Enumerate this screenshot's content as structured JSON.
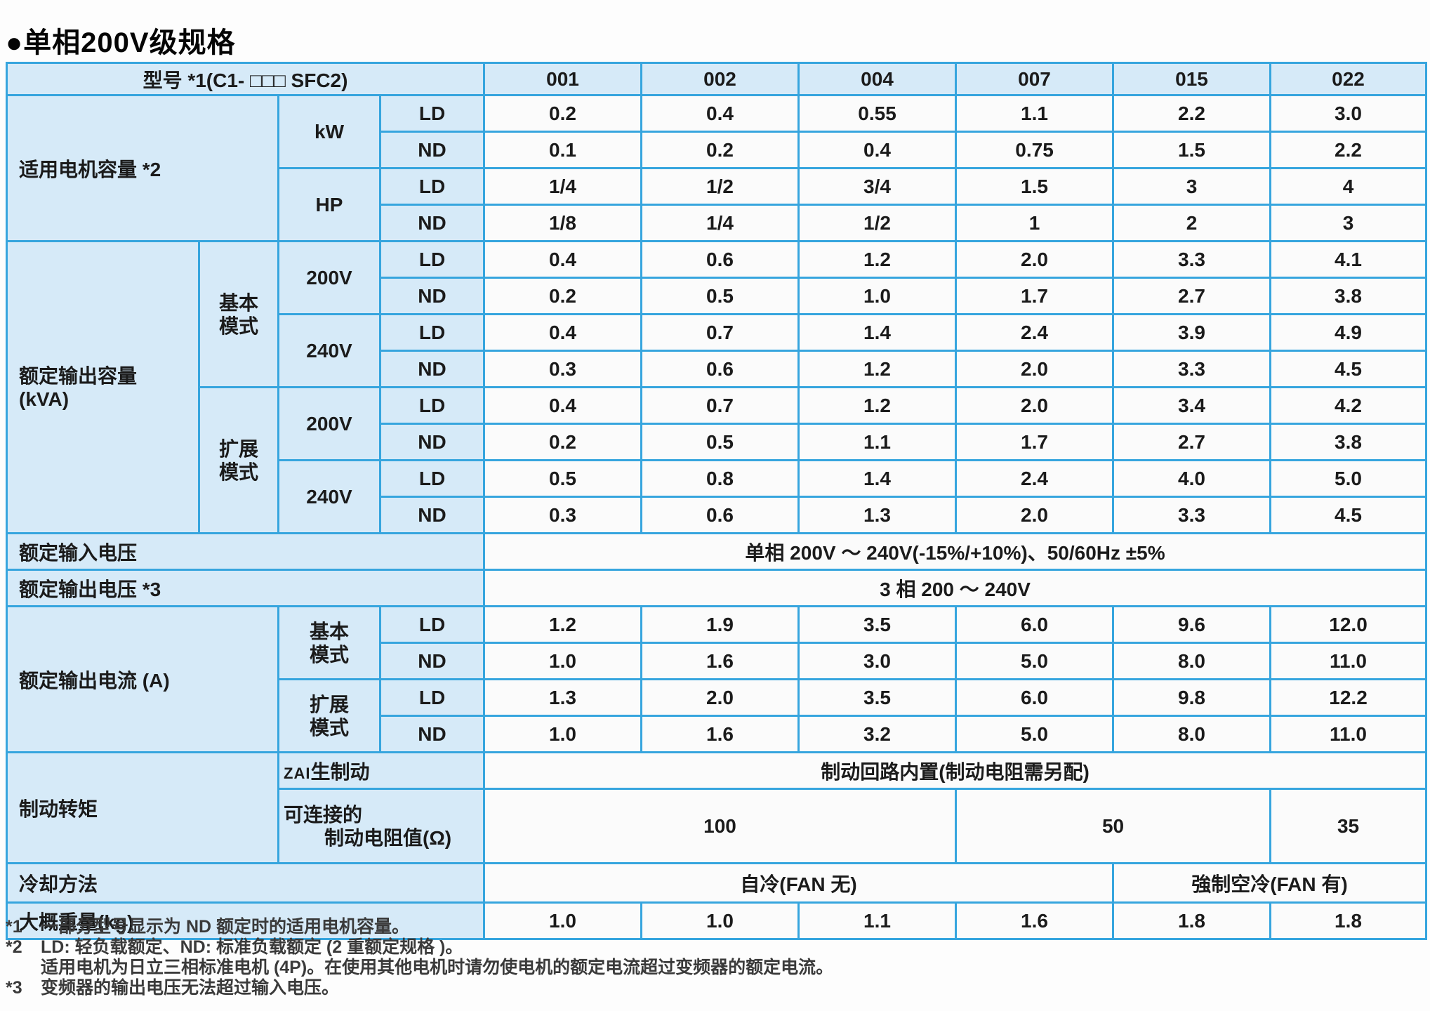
{
  "title": "●单相200V级规格",
  "colors": {
    "table_border": "#36a5de",
    "label_fill": "#d6eaf8",
    "value_fill": "#fbfbfb",
    "text": "#1b1b1b"
  },
  "specs": {
    "model_row": {
      "label": "型号 *1(C1- □□□ SFC2)",
      "models": [
        "001",
        "002",
        "004",
        "007",
        "015",
        "022"
      ]
    },
    "motor": {
      "label": "适用电机容量 *2",
      "units": [
        {
          "unit": "kW",
          "rows": [
            {
              "load": "LD",
              "values": [
                "0.2",
                "0.4",
                "0.55",
                "1.1",
                "2.2",
                "3.0"
              ]
            },
            {
              "load": "ND",
              "values": [
                "0.1",
                "0.2",
                "0.4",
                "0.75",
                "1.5",
                "2.2"
              ]
            }
          ]
        },
        {
          "unit": "HP",
          "rows": [
            {
              "load": "LD",
              "values": [
                "1/4",
                "1/2",
                "3/4",
                "1.5",
                "3",
                "4"
              ]
            },
            {
              "load": "ND",
              "values": [
                "1/8",
                "1/4",
                "1/2",
                "1",
                "2",
                "3"
              ]
            }
          ]
        }
      ]
    },
    "capacity": {
      "label_lines": [
        "额定输出容量",
        "(kVA)"
      ],
      "modes": [
        {
          "mode_lines": [
            "基本",
            "模式"
          ],
          "voltages": [
            {
              "voltage": "200V",
              "rows": [
                {
                  "load": "LD",
                  "values": [
                    "0.4",
                    "0.6",
                    "1.2",
                    "2.0",
                    "3.3",
                    "4.1"
                  ]
                },
                {
                  "load": "ND",
                  "values": [
                    "0.2",
                    "0.5",
                    "1.0",
                    "1.7",
                    "2.7",
                    "3.8"
                  ]
                }
              ]
            },
            {
              "voltage": "240V",
              "rows": [
                {
                  "load": "LD",
                  "values": [
                    "0.4",
                    "0.7",
                    "1.4",
                    "2.4",
                    "3.9",
                    "4.9"
                  ]
                },
                {
                  "load": "ND",
                  "values": [
                    "0.3",
                    "0.6",
                    "1.2",
                    "2.0",
                    "3.3",
                    "4.5"
                  ]
                }
              ]
            }
          ]
        },
        {
          "mode_lines": [
            "扩展",
            "模式"
          ],
          "voltages": [
            {
              "voltage": "200V",
              "rows": [
                {
                  "load": "LD",
                  "values": [
                    "0.4",
                    "0.7",
                    "1.2",
                    "2.0",
                    "3.4",
                    "4.2"
                  ]
                },
                {
                  "load": "ND",
                  "values": [
                    "0.2",
                    "0.5",
                    "1.1",
                    "1.7",
                    "2.7",
                    "3.8"
                  ]
                }
              ]
            },
            {
              "voltage": "240V",
              "rows": [
                {
                  "load": "LD",
                  "values": [
                    "0.5",
                    "0.8",
                    "1.4",
                    "2.4",
                    "4.0",
                    "5.0"
                  ]
                },
                {
                  "load": "ND",
                  "values": [
                    "0.3",
                    "0.6",
                    "1.3",
                    "2.0",
                    "3.3",
                    "4.5"
                  ]
                }
              ]
            }
          ]
        }
      ]
    },
    "input_voltage": {
      "label": "额定输入电压",
      "value": "单相 200V ～ 240V(-15%/+10%)、50/60Hz ±5%"
    },
    "output_voltage": {
      "label": "额定输出电压 *3",
      "value": "3 相 200 ～ 240V"
    },
    "current": {
      "label": "额定输出电流 (A)",
      "modes": [
        {
          "mode_lines": [
            "基本",
            "模式"
          ],
          "rows": [
            {
              "load": "LD",
              "values": [
                "1.2",
                "1.9",
                "3.5",
                "6.0",
                "9.6",
                "12.0"
              ]
            },
            {
              "load": "ND",
              "values": [
                "1.0",
                "1.6",
                "3.0",
                "5.0",
                "8.0",
                "11.0"
              ]
            }
          ]
        },
        {
          "mode_lines": [
            "扩展",
            "模式"
          ],
          "rows": [
            {
              "load": "LD",
              "values": [
                "1.3",
                "2.0",
                "3.5",
                "6.0",
                "9.8",
                "12.2"
              ]
            },
            {
              "load": "ND",
              "values": [
                "1.0",
                "1.6",
                "3.2",
                "5.0",
                "8.0",
                "11.0"
              ]
            }
          ]
        }
      ]
    },
    "braking": {
      "label": "制动转矩",
      "regen_prefix": "ZAI",
      "regen_label": "生制动",
      "regen_value": "制动回路内置(制动电阻需另配)",
      "resistor_label_lines": [
        "可连接的",
        "制动电阻值(Ω)"
      ],
      "resistor_values": [
        {
          "value": "100"
        },
        {
          "value": "50"
        },
        {
          "value": "35"
        }
      ]
    },
    "cooling": {
      "label": "冷却方法",
      "self_cooling": "自冷(FAN 无)",
      "forced_cooling": "強制空冷(FAN 有)"
    },
    "weight": {
      "label": "大概重量(kg)",
      "values": [
        "1.0",
        "1.0",
        "1.1",
        "1.6",
        "1.8",
        "1.8"
      ]
    }
  },
  "footnotes": [
    {
      "marker": "*1",
      "lines": [
        "一部分型号显示为 ND 额定时的适用电机容量。"
      ]
    },
    {
      "marker": "*2",
      "lines": [
        "LD: 轻负载额定、ND: 标准负载额定 (2 重额定规格 )。",
        "适用电机为日立三相标准电机 (4P)。在使用其他电机时请勿使电机的额定电流超过变频器的额定电流。"
      ]
    },
    {
      "marker": "*3",
      "lines": [
        "变频器的输出电压无法超过输入电压。"
      ]
    }
  ]
}
